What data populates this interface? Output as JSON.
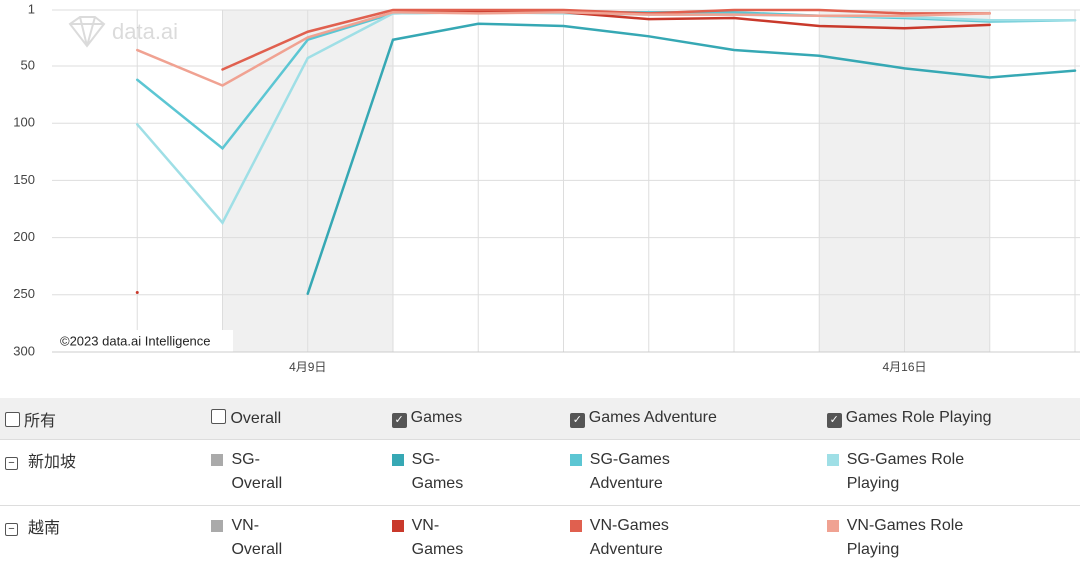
{
  "chart_data": {
    "type": "line",
    "categories": [
      null,
      null,
      null,
      "4月9日",
      null,
      null,
      null,
      null,
      null,
      null,
      "4月16日",
      null,
      null
    ],
    "ylim": [
      300,
      1
    ],
    "yticks": [
      1,
      50,
      100,
      150,
      200,
      250,
      300
    ],
    "grid": true,
    "watermark": "data.ai",
    "credit": "©2023 data.ai Intelligence",
    "series": [
      {
        "name": "SG-Overall",
        "color": "#aaaaaa",
        "visible": false,
        "values": [
          null,
          null,
          null,
          null,
          null,
          null,
          null,
          null,
          null,
          null,
          null,
          null,
          null
        ]
      },
      {
        "name": "SG-Games",
        "color": "#36a8b4",
        "visible": true,
        "values": [
          null,
          null,
          null,
          249,
          27,
          13,
          15,
          24,
          36,
          41,
          52,
          60,
          54
        ]
      },
      {
        "name": "SG-Games Adventure",
        "color": "#5cc6d3",
        "visible": true,
        "values": [
          null,
          62,
          122,
          27,
          4,
          3,
          3,
          3,
          3,
          6,
          8,
          11,
          10
        ]
      },
      {
        "name": "SG-Games Role Playing",
        "color": "#9fdfe6",
        "visible": true,
        "values": [
          null,
          101,
          187,
          43,
          4,
          3,
          4,
          5,
          5,
          6,
          7,
          10,
          10
        ]
      },
      {
        "name": "VN-Overall",
        "color": "#aaaaaa",
        "visible": false,
        "values": [
          null,
          null,
          null,
          null,
          null,
          null,
          null,
          null,
          null,
          null,
          null,
          null,
          null
        ]
      },
      {
        "name": "VN-Games",
        "color": "#c9392b",
        "visible": true,
        "values": [
          null,
          248,
          null,
          null,
          3,
          3,
          3,
          9,
          8,
          15,
          17,
          14,
          null
        ]
      },
      {
        "name": "VN-Games Adventure",
        "color": "#e0604f",
        "visible": true,
        "values": [
          null,
          null,
          53,
          20,
          1,
          1,
          1,
          4,
          1,
          1,
          4,
          4,
          null
        ]
      },
      {
        "name": "VN-Games Role Playing",
        "color": "#f0a292",
        "visible": true,
        "values": [
          null,
          36,
          67,
          25,
          3,
          4,
          3,
          5,
          5,
          6,
          6,
          4,
          null
        ]
      }
    ]
  },
  "filters": [
    {
      "label": "所有",
      "checked": false
    },
    {
      "label": "Overall",
      "checked": false
    },
    {
      "label": "Games",
      "checked": true
    },
    {
      "label": "Games Adventure",
      "checked": true
    },
    {
      "label": "Games Role Playing",
      "checked": true
    }
  ],
  "groups": [
    {
      "label": "新加坡",
      "series": [
        0,
        1,
        2,
        3
      ]
    },
    {
      "label": "越南",
      "series": [
        4,
        5,
        6,
        7
      ]
    }
  ]
}
